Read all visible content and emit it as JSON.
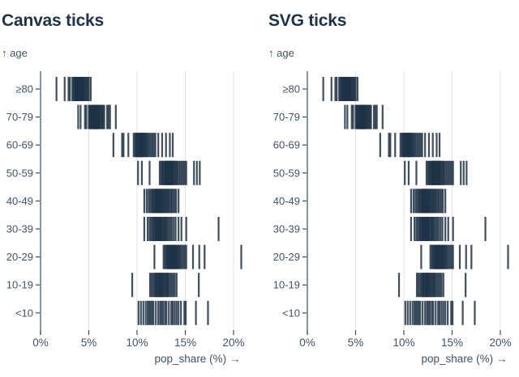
{
  "page": {
    "background": "#ffffff"
  },
  "styles": {
    "tick_color": "#1e3246",
    "grid_color": "#e3e4e6",
    "axis_color": "#3c4b60",
    "label_color": "#42526b",
    "title_color": "#1c3349"
  },
  "chart_data": [
    {
      "type": "scatter",
      "variant": "strip-tick-plot",
      "title": "Canvas ticks",
      "xlabel": "pop_share (%) →",
      "ylabel": "↑ age",
      "xlim": [
        0,
        21
      ],
      "grid": true,
      "x_tick_values": [
        0,
        5,
        10,
        15,
        20
      ],
      "x_tick_labels": [
        "0%",
        "5%",
        "10%",
        "15%",
        "20%"
      ],
      "categories": [
        "≥80",
        "70-79",
        "60-69",
        "50-59",
        "40-49",
        "30-39",
        "20-29",
        "10-19",
        "<10"
      ],
      "series": [
        {
          "name": "≥80",
          "values": [
            1.65,
            2.5,
            2.9,
            3.05,
            3.3,
            3.4,
            3.5,
            3.6,
            3.65,
            3.7,
            3.75,
            3.8,
            3.85,
            3.9,
            3.95,
            4.0,
            4.05,
            4.1,
            4.15,
            4.2,
            4.25,
            4.3,
            4.35,
            4.4,
            4.45,
            4.5,
            4.6,
            4.7,
            4.8,
            4.9,
            5.0,
            5.2
          ]
        },
        {
          "name": "70-79",
          "values": [
            3.9,
            4.15,
            4.6,
            4.75,
            5.0,
            5.1,
            5.15,
            5.25,
            5.3,
            5.4,
            5.45,
            5.5,
            5.55,
            5.6,
            5.65,
            5.7,
            5.75,
            5.8,
            5.85,
            5.9,
            6.0,
            6.05,
            6.1,
            6.2,
            6.3,
            6.4,
            6.5,
            6.6,
            6.9,
            7.05,
            7.2,
            7.8
          ]
        },
        {
          "name": "60-69",
          "values": [
            7.55,
            8.45,
            8.6,
            9.1,
            9.65,
            9.8,
            9.9,
            9.95,
            10.05,
            10.1,
            10.2,
            10.25,
            10.3,
            10.4,
            10.45,
            10.5,
            10.55,
            10.6,
            10.7,
            10.75,
            10.85,
            10.95,
            11.05,
            11.15,
            11.3,
            11.45,
            11.6,
            11.75,
            11.9,
            12.2,
            12.6,
            13.0,
            13.4,
            13.7
          ]
        },
        {
          "name": "50-59",
          "values": [
            10.1,
            10.5,
            11.3,
            12.35,
            12.5,
            12.6,
            12.7,
            12.8,
            12.9,
            12.95,
            13.0,
            13.05,
            13.1,
            13.2,
            13.25,
            13.3,
            13.4,
            13.45,
            13.5,
            13.6,
            13.65,
            13.7,
            13.8,
            13.9,
            14.0,
            14.1,
            14.2,
            14.35,
            14.5,
            14.65,
            14.8,
            14.95,
            15.1,
            15.9,
            16.2,
            16.5
          ]
        },
        {
          "name": "40-49",
          "values": [
            10.75,
            11.0,
            11.2,
            11.35,
            11.5,
            11.6,
            11.7,
            11.8,
            11.9,
            11.95,
            12.0,
            12.1,
            12.15,
            12.2,
            12.3,
            12.35,
            12.45,
            12.5,
            12.6,
            12.65,
            12.75,
            12.85,
            12.95,
            13.05,
            13.15,
            13.25,
            13.35,
            13.5,
            13.6,
            13.75,
            13.9,
            14.05,
            14.3
          ]
        },
        {
          "name": "30-39",
          "values": [
            10.75,
            11.1,
            11.3,
            11.45,
            11.6,
            11.7,
            11.8,
            11.9,
            11.95,
            12.05,
            12.1,
            12.2,
            12.25,
            12.35,
            12.4,
            12.5,
            12.55,
            12.65,
            12.75,
            12.85,
            12.95,
            13.05,
            13.15,
            13.3,
            13.45,
            13.6,
            13.8,
            14.0,
            14.3,
            14.6,
            15.1,
            18.45
          ]
        },
        {
          "name": "20-29",
          "values": [
            11.8,
            12.75,
            12.9,
            13.0,
            13.1,
            13.2,
            13.25,
            13.35,
            13.4,
            13.5,
            13.55,
            13.6,
            13.7,
            13.75,
            13.8,
            13.9,
            13.95,
            14.05,
            14.1,
            14.2,
            14.3,
            14.4,
            14.5,
            14.65,
            14.8,
            14.95,
            15.1,
            15.8,
            16.45,
            17.0,
            20.8
          ]
        },
        {
          "name": "10-19",
          "values": [
            9.5,
            11.35,
            11.5,
            11.65,
            11.8,
            11.9,
            12.0,
            12.05,
            12.15,
            12.25,
            12.3,
            12.4,
            12.45,
            12.55,
            12.6,
            12.7,
            12.8,
            12.9,
            13.0,
            13.1,
            13.2,
            13.3,
            13.45,
            13.6,
            13.75,
            13.9,
            14.1,
            16.4
          ]
        },
        {
          "name": "<10",
          "values": [
            10.15,
            10.4,
            10.65,
            10.9,
            11.1,
            11.25,
            11.4,
            11.55,
            11.7,
            11.95,
            12.2,
            12.4,
            12.55,
            12.7,
            12.9,
            13.05,
            13.3,
            13.55,
            13.7,
            13.9,
            14.1,
            14.3,
            14.55,
            14.9,
            15.05,
            16.1,
            17.35
          ]
        }
      ]
    },
    {
      "type": "scatter",
      "variant": "strip-tick-plot",
      "title": "SVG ticks",
      "xlabel": "pop_share (%) →",
      "ylabel": "↑ age",
      "xlim": [
        0,
        21
      ],
      "grid": true,
      "x_tick_values": [
        0,
        5,
        10,
        15,
        20
      ],
      "x_tick_labels": [
        "0%",
        "5%",
        "10%",
        "15%",
        "20%"
      ],
      "categories": [
        "≥80",
        "70-79",
        "60-69",
        "50-59",
        "40-49",
        "30-39",
        "20-29",
        "10-19",
        "<10"
      ],
      "series": [
        {
          "name": "≥80",
          "values": [
            1.65,
            2.5,
            2.9,
            3.05,
            3.3,
            3.4,
            3.5,
            3.6,
            3.65,
            3.7,
            3.75,
            3.8,
            3.85,
            3.9,
            3.95,
            4.0,
            4.05,
            4.1,
            4.15,
            4.2,
            4.25,
            4.3,
            4.35,
            4.4,
            4.45,
            4.5,
            4.6,
            4.7,
            4.8,
            4.9,
            5.0,
            5.2
          ]
        },
        {
          "name": "70-79",
          "values": [
            3.9,
            4.15,
            4.6,
            4.75,
            5.0,
            5.1,
            5.15,
            5.25,
            5.3,
            5.4,
            5.45,
            5.5,
            5.55,
            5.6,
            5.65,
            5.7,
            5.75,
            5.8,
            5.85,
            5.9,
            6.0,
            6.05,
            6.1,
            6.2,
            6.3,
            6.4,
            6.5,
            6.6,
            6.9,
            7.05,
            7.2,
            7.8
          ]
        },
        {
          "name": "60-69",
          "values": [
            7.55,
            8.45,
            8.6,
            9.1,
            9.65,
            9.8,
            9.9,
            9.95,
            10.05,
            10.1,
            10.2,
            10.25,
            10.3,
            10.4,
            10.45,
            10.5,
            10.55,
            10.6,
            10.7,
            10.75,
            10.85,
            10.95,
            11.05,
            11.15,
            11.3,
            11.45,
            11.6,
            11.75,
            11.9,
            12.2,
            12.6,
            13.0,
            13.4,
            13.7
          ]
        },
        {
          "name": "50-59",
          "values": [
            10.1,
            10.5,
            11.3,
            12.35,
            12.5,
            12.6,
            12.7,
            12.8,
            12.9,
            12.95,
            13.0,
            13.05,
            13.1,
            13.2,
            13.25,
            13.3,
            13.4,
            13.45,
            13.5,
            13.6,
            13.65,
            13.7,
            13.8,
            13.9,
            14.0,
            14.1,
            14.2,
            14.35,
            14.5,
            14.65,
            14.8,
            14.95,
            15.1,
            15.9,
            16.2,
            16.5
          ]
        },
        {
          "name": "40-49",
          "values": [
            10.75,
            11.0,
            11.2,
            11.35,
            11.5,
            11.6,
            11.7,
            11.8,
            11.9,
            11.95,
            12.0,
            12.1,
            12.15,
            12.2,
            12.3,
            12.35,
            12.45,
            12.5,
            12.6,
            12.65,
            12.75,
            12.85,
            12.95,
            13.05,
            13.15,
            13.25,
            13.35,
            13.5,
            13.6,
            13.75,
            13.9,
            14.05,
            14.3
          ]
        },
        {
          "name": "30-39",
          "values": [
            10.75,
            11.1,
            11.3,
            11.45,
            11.6,
            11.7,
            11.8,
            11.9,
            11.95,
            12.05,
            12.1,
            12.2,
            12.25,
            12.35,
            12.4,
            12.5,
            12.55,
            12.65,
            12.75,
            12.85,
            12.95,
            13.05,
            13.15,
            13.3,
            13.45,
            13.6,
            13.8,
            14.0,
            14.3,
            14.6,
            15.1,
            18.45
          ]
        },
        {
          "name": "20-29",
          "values": [
            11.8,
            12.75,
            12.9,
            13.0,
            13.1,
            13.2,
            13.25,
            13.35,
            13.4,
            13.5,
            13.55,
            13.6,
            13.7,
            13.75,
            13.8,
            13.9,
            13.95,
            14.05,
            14.1,
            14.2,
            14.3,
            14.4,
            14.5,
            14.65,
            14.8,
            14.95,
            15.1,
            15.8,
            16.45,
            17.0,
            20.8
          ]
        },
        {
          "name": "10-19",
          "values": [
            9.5,
            11.35,
            11.5,
            11.65,
            11.8,
            11.9,
            12.0,
            12.05,
            12.15,
            12.25,
            12.3,
            12.4,
            12.45,
            12.55,
            12.6,
            12.7,
            12.8,
            12.9,
            13.0,
            13.1,
            13.2,
            13.3,
            13.45,
            13.6,
            13.75,
            13.9,
            14.1,
            16.4
          ]
        },
        {
          "name": "<10",
          "values": [
            10.15,
            10.4,
            10.65,
            10.9,
            11.1,
            11.25,
            11.4,
            11.55,
            11.7,
            11.95,
            12.2,
            12.4,
            12.55,
            12.7,
            12.9,
            13.05,
            13.3,
            13.55,
            13.7,
            13.9,
            14.1,
            14.3,
            14.55,
            14.9,
            15.05,
            16.1,
            17.35
          ]
        }
      ]
    }
  ]
}
